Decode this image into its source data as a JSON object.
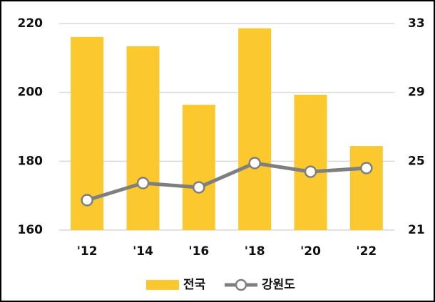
{
  "chart_data": {
    "type": "bar-line",
    "categories": [
      "'12",
      "'14",
      "'16",
      "'18",
      "'20",
      "'22"
    ],
    "series": [
      {
        "name": "전국",
        "type": "bar",
        "color": "#fbc82e",
        "values": [
          216.1,
          213.4,
          196.4,
          218.6,
          199.3,
          184.4
        ]
      },
      {
        "name": "강원도",
        "type": "line",
        "axis": "y2",
        "color": "#7f7f7f",
        "values": [
          22.74,
          23.73,
          23.48,
          24.89,
          24.39,
          24.6
        ]
      }
    ],
    "ylim": [
      160,
      220
    ],
    "yticks": [
      160,
      180,
      200,
      220
    ],
    "y2lim": [
      21,
      33
    ],
    "y2ticks": [
      21,
      25,
      29,
      33
    ],
    "grid": true,
    "legend": "bottom"
  }
}
